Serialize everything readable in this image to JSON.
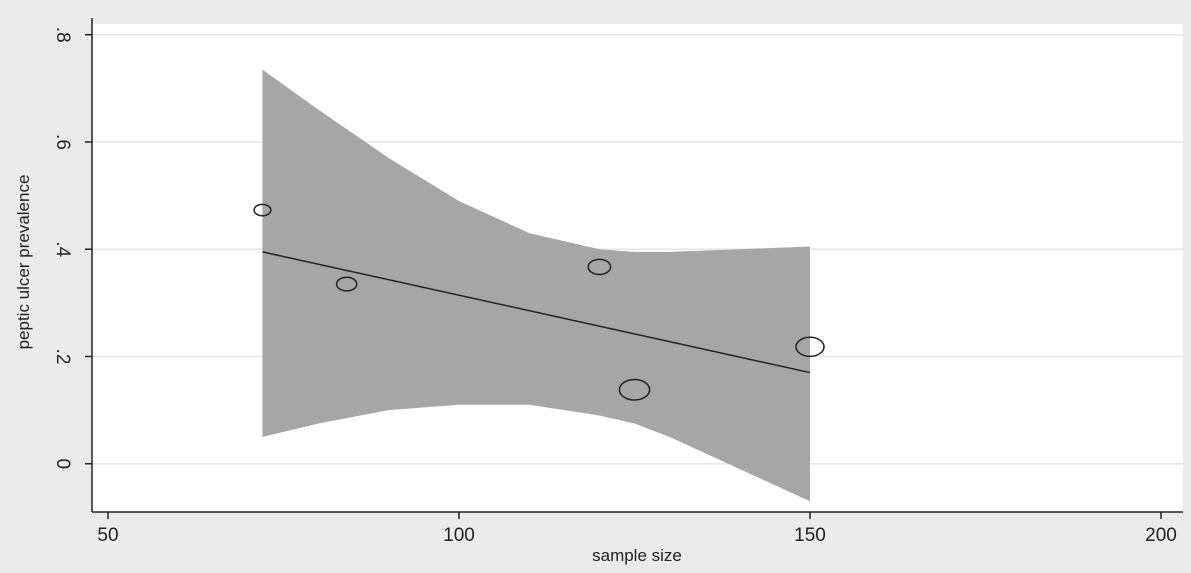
{
  "chart_data": {
    "type": "scatter",
    "xlabel": "sample size",
    "ylabel": "peptic ulcer prevalence",
    "xlim": [
      50,
      200
    ],
    "ylim": [
      -0.09,
      0.82
    ],
    "x_ticks": [
      50,
      100,
      150,
      200
    ],
    "x_tick_labels": [
      "50",
      "100",
      "150",
      "200"
    ],
    "y_ticks": [
      0,
      0.2,
      0.4,
      0.6,
      0.8
    ],
    "y_tick_labels": [
      "0",
      ".2",
      ".4",
      ".6",
      ".8"
    ],
    "grid": true,
    "points": [
      {
        "x": 72,
        "y": 0.473,
        "size": 0.3
      },
      {
        "x": 84,
        "y": 0.335,
        "size": 0.45
      },
      {
        "x": 120,
        "y": 0.367,
        "size": 0.55
      },
      {
        "x": 125,
        "y": 0.138,
        "size": 0.9
      },
      {
        "x": 150,
        "y": 0.218,
        "size": 0.8
      }
    ],
    "fit_line": {
      "x": [
        72,
        150
      ],
      "y": [
        0.395,
        0.17
      ]
    },
    "ci_band": {
      "x": [
        72,
        80,
        90,
        100,
        110,
        120,
        125,
        130,
        140,
        150
      ],
      "upper": [
        0.735,
        0.66,
        0.57,
        0.49,
        0.43,
        0.4,
        0.395,
        0.395,
        0.4,
        0.405
      ],
      "lower": [
        0.05,
        0.075,
        0.1,
        0.11,
        0.11,
        0.09,
        0.075,
        0.05,
        -0.01,
        -0.07
      ]
    },
    "colors": {
      "background": "#ebebeb",
      "plot_area": "#ffffff",
      "band": "#a6a6a6",
      "grid": "#e6e6e6",
      "line": "#222222"
    }
  }
}
